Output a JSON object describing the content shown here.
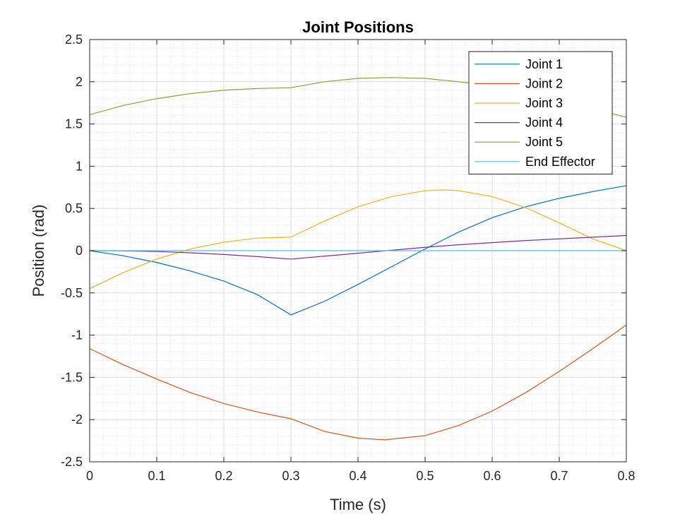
{
  "chart_data": {
    "type": "line",
    "title": "Joint Positions",
    "xlabel": "Time (s)",
    "ylabel": "Position (rad)",
    "xlim": [
      0,
      0.8
    ],
    "ylim": [
      -2.5,
      2.5
    ],
    "xticks": [
      0,
      0.1,
      0.2,
      0.3,
      0.4,
      0.5,
      0.6,
      0.7,
      0.8
    ],
    "xtick_labels": [
      "0",
      "0.1",
      "0.2",
      "0.3",
      "0.4",
      "0.5",
      "0.6",
      "0.7",
      "0.8"
    ],
    "yticks": [
      -2.5,
      -2,
      -1.5,
      -1,
      -0.5,
      0,
      0.5,
      1,
      1.5,
      2,
      2.5
    ],
    "ytick_labels": [
      "-2.5",
      "-2",
      "-1.5",
      "-1",
      "-0.5",
      "0",
      "0.5",
      "1",
      "1.5",
      "2",
      "2.5"
    ],
    "grid": true,
    "minor_grid": true,
    "legend_position": "top-right",
    "series": [
      {
        "name": "Joint 1",
        "color": "#0072BD",
        "x": [
          0,
          0.05,
          0.1,
          0.15,
          0.2,
          0.25,
          0.3,
          0.35,
          0.4,
          0.45,
          0.5,
          0.55,
          0.6,
          0.65,
          0.7,
          0.75,
          0.8
        ],
        "y": [
          0,
          -0.06,
          -0.14,
          -0.24,
          -0.36,
          -0.52,
          -0.76,
          -0.6,
          -0.4,
          -0.19,
          0.02,
          0.22,
          0.39,
          0.52,
          0.62,
          0.7,
          0.77
        ]
      },
      {
        "name": "Joint 2",
        "color": "#D95319",
        "x": [
          0,
          0.05,
          0.1,
          0.15,
          0.2,
          0.25,
          0.3,
          0.35,
          0.4,
          0.44,
          0.5,
          0.55,
          0.6,
          0.65,
          0.7,
          0.75,
          0.8
        ],
        "y": [
          -1.16,
          -1.35,
          -1.52,
          -1.68,
          -1.81,
          -1.91,
          -1.99,
          -2.14,
          -2.22,
          -2.24,
          -2.19,
          -2.07,
          -1.9,
          -1.68,
          -1.43,
          -1.16,
          -0.88
        ]
      },
      {
        "name": "Joint 3",
        "color": "#EDB120",
        "x": [
          0,
          0.05,
          0.1,
          0.15,
          0.2,
          0.25,
          0.3,
          0.35,
          0.4,
          0.45,
          0.5,
          0.53,
          0.55,
          0.6,
          0.65,
          0.7,
          0.75,
          0.8
        ],
        "y": [
          -0.45,
          -0.26,
          -0.1,
          0.02,
          0.1,
          0.15,
          0.16,
          0.35,
          0.52,
          0.64,
          0.71,
          0.72,
          0.71,
          0.64,
          0.51,
          0.33,
          0.14,
          0
        ]
      },
      {
        "name": "Joint 4",
        "color": "#7E2F8E",
        "x": [
          0,
          0.05,
          0.1,
          0.15,
          0.2,
          0.25,
          0.3,
          0.35,
          0.4,
          0.45,
          0.5,
          0.55,
          0.6,
          0.65,
          0.7,
          0.75,
          0.8
        ],
        "y": [
          0,
          -0.002,
          -0.01,
          -0.025,
          -0.045,
          -0.07,
          -0.1,
          -0.065,
          -0.03,
          0.005,
          0.04,
          0.07,
          0.095,
          0.12,
          0.14,
          0.16,
          0.18
        ]
      },
      {
        "name": "Joint 5",
        "color": "#77AC30",
        "x": [
          0,
          0.05,
          0.1,
          0.15,
          0.2,
          0.25,
          0.3,
          0.35,
          0.4,
          0.45,
          0.5,
          0.55,
          0.6,
          0.65,
          0.7,
          0.75,
          0.8
        ],
        "y": [
          1.61,
          1.72,
          1.8,
          1.86,
          1.9,
          1.92,
          1.93,
          2.0,
          2.04,
          2.05,
          2.04,
          2.0,
          1.95,
          1.87,
          1.78,
          1.68,
          1.58
        ]
      },
      {
        "name": "End Effector",
        "color": "#4DBEEE",
        "x": [
          0,
          0.8
        ],
        "y": [
          0,
          0
        ]
      }
    ]
  }
}
